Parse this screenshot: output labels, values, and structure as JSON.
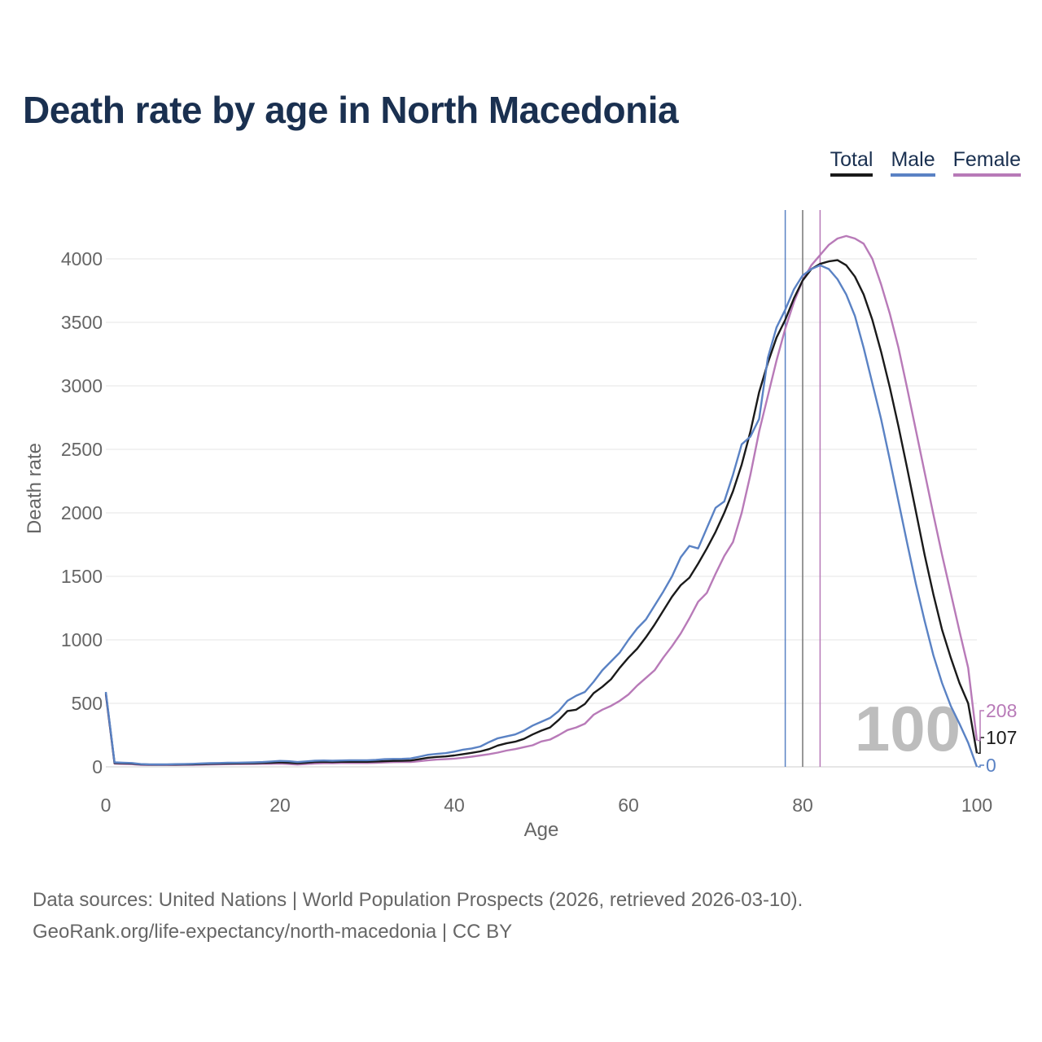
{
  "title": "Death rate by age in North Macedonia",
  "legend": [
    {
      "label": "Total",
      "color": "#1a1a1a"
    },
    {
      "label": "Male",
      "color": "#5a82c4"
    },
    {
      "label": "Female",
      "color": "#b87ab8"
    }
  ],
  "footer": {
    "source": "Data sources: United Nations | World Population Prospects (2026, retrieved 2026-03-10).",
    "credit": "GeoRank.org/life-expectancy/north-macedonia | CC BY"
  },
  "chart_data": {
    "type": "line",
    "title": "Death rate by age in North Macedonia",
    "xlabel": "Age",
    "ylabel": "Death rate",
    "xlim": [
      0,
      100
    ],
    "ylim": [
      0,
      4400
    ],
    "x_ticks": [
      0,
      20,
      40,
      60,
      80,
      100
    ],
    "y_ticks": [
      0,
      500,
      1000,
      1500,
      2000,
      2500,
      3000,
      3500,
      4000
    ],
    "grid": true,
    "legend_position": "top-right",
    "highlight_age": "100",
    "end_labels": {
      "Total": "107",
      "Male": "0",
      "Female": "208"
    },
    "reference_lines": [
      {
        "series": "Male",
        "x": 78
      },
      {
        "series": "Total",
        "x": 80
      },
      {
        "series": "Female",
        "x": 82
      }
    ],
    "x": [
      0,
      1,
      2,
      3,
      4,
      5,
      6,
      7,
      8,
      9,
      10,
      11,
      12,
      13,
      14,
      15,
      16,
      17,
      18,
      19,
      20,
      21,
      22,
      23,
      24,
      25,
      26,
      27,
      28,
      29,
      30,
      31,
      32,
      33,
      34,
      35,
      36,
      37,
      38,
      39,
      40,
      41,
      42,
      43,
      44,
      45,
      46,
      47,
      48,
      49,
      50,
      51,
      52,
      53,
      54,
      55,
      56,
      57,
      58,
      59,
      60,
      61,
      62,
      63,
      64,
      65,
      66,
      67,
      68,
      69,
      70,
      71,
      72,
      73,
      74,
      75,
      76,
      77,
      78,
      79,
      80,
      81,
      82,
      83,
      84,
      85,
      86,
      87,
      88,
      89,
      90,
      91,
      92,
      93,
      94,
      95,
      96,
      97,
      98,
      99,
      100
    ],
    "series": [
      {
        "name": "Total",
        "color": "#1a1a1a",
        "values": [
          580,
          30,
          28,
          26,
          20,
          18,
          17,
          18,
          18,
          19,
          20,
          22,
          24,
          25,
          26,
          27,
          28,
          29,
          31,
          33,
          36,
          33,
          28,
          33,
          38,
          40,
          38,
          40,
          40,
          40,
          40,
          42,
          45,
          47,
          48,
          50,
          60,
          72,
          78,
          82,
          90,
          100,
          110,
          122,
          140,
          168,
          185,
          198,
          220,
          255,
          285,
          310,
          370,
          440,
          450,
          495,
          580,
          630,
          690,
          780,
          860,
          930,
          1020,
          1120,
          1230,
          1340,
          1430,
          1490,
          1600,
          1720,
          1850,
          2000,
          2170,
          2380,
          2640,
          2950,
          3180,
          3380,
          3520,
          3690,
          3830,
          3920,
          3960,
          3980,
          3990,
          3950,
          3860,
          3720,
          3520,
          3270,
          2990,
          2680,
          2350,
          2010,
          1670,
          1360,
          1080,
          860,
          660,
          500,
          107
        ]
      },
      {
        "name": "Male",
        "color": "#5a82c4",
        "values": [
          590,
          35,
          33,
          30,
          22,
          20,
          19,
          20,
          21,
          22,
          24,
          27,
          29,
          30,
          32,
          33,
          34,
          35,
          38,
          42,
          47,
          44,
          38,
          43,
          48,
          50,
          48,
          50,
          52,
          52,
          52,
          55,
          60,
          62,
          63,
          66,
          80,
          95,
          102,
          108,
          120,
          135,
          145,
          160,
          195,
          225,
          240,
          255,
          285,
          325,
          355,
          385,
          440,
          520,
          560,
          590,
          670,
          760,
          830,
          900,
          1000,
          1090,
          1160,
          1270,
          1380,
          1500,
          1650,
          1740,
          1720,
          1880,
          2040,
          2090,
          2300,
          2540,
          2600,
          2740,
          3220,
          3460,
          3600,
          3760,
          3870,
          3920,
          3950,
          3920,
          3840,
          3720,
          3550,
          3300,
          3020,
          2740,
          2420,
          2090,
          1760,
          1440,
          1150,
          880,
          660,
          480,
          340,
          190,
          0
        ]
      },
      {
        "name": "Female",
        "color": "#b87ab8",
        "values": [
          570,
          25,
          23,
          21,
          16,
          15,
          15,
          15,
          15,
          16,
          16,
          17,
          19,
          20,
          21,
          22,
          22,
          23,
          24,
          24,
          25,
          22,
          18,
          22,
          26,
          28,
          28,
          30,
          30,
          30,
          30,
          32,
          35,
          37,
          38,
          38,
          45,
          52,
          57,
          60,
          65,
          72,
          80,
          90,
          100,
          112,
          128,
          140,
          155,
          170,
          200,
          215,
          250,
          290,
          310,
          340,
          410,
          450,
          480,
          520,
          570,
          640,
          700,
          760,
          860,
          950,
          1050,
          1170,
          1300,
          1370,
          1520,
          1660,
          1770,
          2000,
          2300,
          2640,
          2920,
          3200,
          3450,
          3660,
          3830,
          3950,
          4030,
          4110,
          4160,
          4180,
          4160,
          4120,
          4000,
          3800,
          3570,
          3300,
          2980,
          2650,
          2320,
          1990,
          1670,
          1370,
          1070,
          780,
          208
        ]
      }
    ]
  }
}
